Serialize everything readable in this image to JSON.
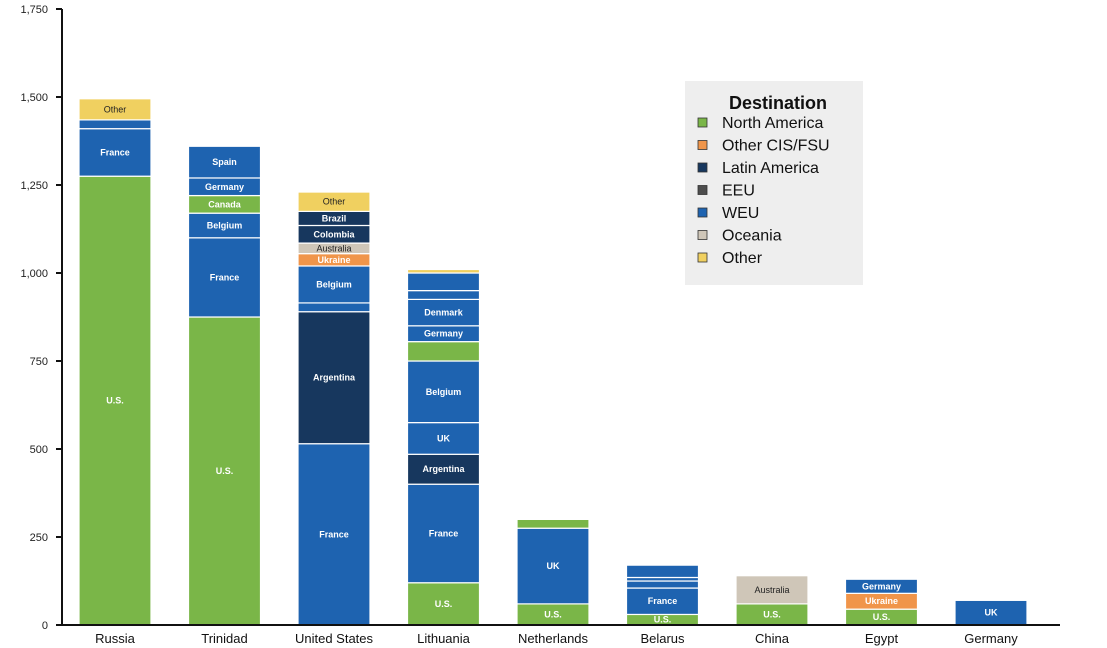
{
  "chart_data": {
    "type": "bar",
    "stacked": true,
    "categories": [
      "Russia",
      "Trinidad",
      "United States",
      "Lithuania",
      "Netherlands",
      "Belarus",
      "China",
      "Egypt",
      "Germany"
    ],
    "ylim": [
      0,
      1750
    ],
    "yticks": [
      "0",
      "250",
      "500",
      "750",
      "1,000",
      "1,250",
      "1,500",
      "1,750"
    ],
    "ytick_values": [
      0,
      250,
      500,
      750,
      1000,
      1250,
      1500,
      1750
    ],
    "legend": {
      "title": "Destination",
      "position": "top-right",
      "entries": [
        {
          "name": "North America",
          "color": "#7ab648"
        },
        {
          "name": "Other CIS/FSU",
          "color": "#f0954a"
        },
        {
          "name": "Latin America",
          "color": "#17375e"
        },
        {
          "name": "EEU",
          "color": "#4d4d4d"
        },
        {
          "name": "WEU",
          "color": "#1e63b0"
        },
        {
          "name": "Oceania",
          "color": "#cfc6b8"
        },
        {
          "name": "Other",
          "color": "#f0d060"
        }
      ]
    },
    "bars": [
      {
        "category": "Russia",
        "segments": [
          {
            "group": "North America",
            "value": 1275,
            "label": "U.S."
          },
          {
            "group": "WEU",
            "value": 135,
            "label": "France"
          },
          {
            "group": "WEU",
            "value": 25,
            "label": ""
          },
          {
            "group": "Other",
            "value": 60,
            "label": "Other"
          }
        ]
      },
      {
        "category": "Trinidad",
        "segments": [
          {
            "group": "North America",
            "value": 875,
            "label": "U.S."
          },
          {
            "group": "WEU",
            "value": 225,
            "label": "France"
          },
          {
            "group": "WEU",
            "value": 70,
            "label": "Belgium"
          },
          {
            "group": "North America",
            "value": 50,
            "label": "Canada"
          },
          {
            "group": "WEU",
            "value": 50,
            "label": "Germany"
          },
          {
            "group": "WEU",
            "value": 90,
            "label": "Spain"
          }
        ]
      },
      {
        "category": "United States",
        "segments": [
          {
            "group": "WEU",
            "value": 515,
            "label": "France"
          },
          {
            "group": "Latin America",
            "value": 375,
            "label": "Argentina"
          },
          {
            "group": "WEU",
            "value": 25,
            "label": ""
          },
          {
            "group": "WEU",
            "value": 105,
            "label": "Belgium"
          },
          {
            "group": "Other CIS/FSU",
            "value": 35,
            "label": "Ukraine"
          },
          {
            "group": "Oceania",
            "value": 30,
            "label": "Australia"
          },
          {
            "group": "Latin America",
            "value": 50,
            "label": "Colombia"
          },
          {
            "group": "Latin America",
            "value": 40,
            "label": "Brazil"
          },
          {
            "group": "Other",
            "value": 55,
            "label": "Other"
          }
        ]
      },
      {
        "category": "Lithuania",
        "segments": [
          {
            "group": "North America",
            "value": 120,
            "label": "U.S."
          },
          {
            "group": "WEU",
            "value": 280,
            "label": "France"
          },
          {
            "group": "Latin America",
            "value": 85,
            "label": "Argentina"
          },
          {
            "group": "WEU",
            "value": 90,
            "label": "UK"
          },
          {
            "group": "WEU",
            "value": 175,
            "label": "Belgium"
          },
          {
            "group": "North America",
            "value": 55,
            "label": ""
          },
          {
            "group": "WEU",
            "value": 45,
            "label": "Germany"
          },
          {
            "group": "WEU",
            "value": 75,
            "label": "Denmark"
          },
          {
            "group": "WEU",
            "value": 25,
            "label": ""
          },
          {
            "group": "WEU",
            "value": 50,
            "label": ""
          },
          {
            "group": "Other",
            "value": 10,
            "label": ""
          }
        ]
      },
      {
        "category": "Netherlands",
        "segments": [
          {
            "group": "North America",
            "value": 60,
            "label": "U.S."
          },
          {
            "group": "WEU",
            "value": 215,
            "label": "UK"
          },
          {
            "group": "North America",
            "value": 25,
            "label": ""
          }
        ]
      },
      {
        "category": "Belarus",
        "segments": [
          {
            "group": "North America",
            "value": 30,
            "label": "U.S."
          },
          {
            "group": "WEU",
            "value": 75,
            "label": "France"
          },
          {
            "group": "WEU",
            "value": 20,
            "label": ""
          },
          {
            "group": "WEU",
            "value": 10,
            "label": ""
          },
          {
            "group": "WEU",
            "value": 35,
            "label": ""
          }
        ]
      },
      {
        "category": "China",
        "segments": [
          {
            "group": "North America",
            "value": 60,
            "label": "U.S."
          },
          {
            "group": "Oceania",
            "value": 80,
            "label": "Australia"
          }
        ]
      },
      {
        "category": "Egypt",
        "segments": [
          {
            "group": "North America",
            "value": 45,
            "label": "U.S."
          },
          {
            "group": "Other CIS/FSU",
            "value": 45,
            "label": "Ukraine"
          },
          {
            "group": "WEU",
            "value": 40,
            "label": "Germany"
          }
        ]
      },
      {
        "category": "Germany",
        "segments": [
          {
            "group": "WEU",
            "value": 70,
            "label": "UK"
          }
        ]
      }
    ]
  }
}
